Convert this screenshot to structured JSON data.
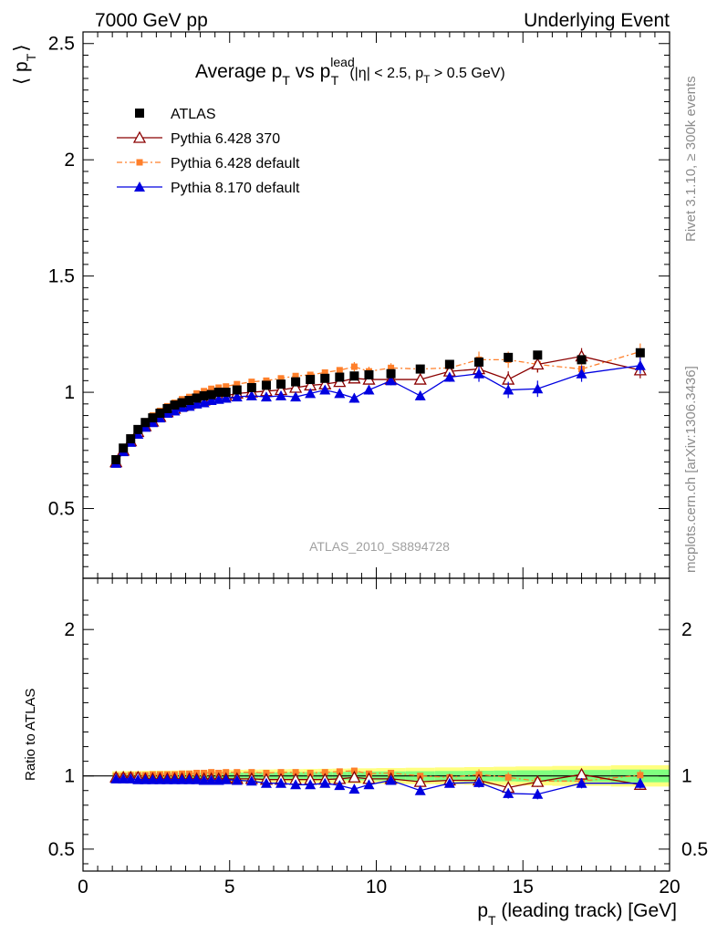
{
  "header": {
    "left": "7000 GeV pp",
    "right": "Underlying Event"
  },
  "side_labels": {
    "rivet": "Rivet 3.1.10, ≥ 300k events",
    "mcplots": "mcplots.cern.ch [arXiv:1306.3436]"
  },
  "plot_title": {
    "main": "Average p",
    "sub_t": "T",
    "vs": " vs p",
    "sup_lead": "lead",
    "sub_t2": "T",
    "cuts_a": "(|η| < 2.5, p",
    "cuts_sub": "T",
    "cuts_b": " > 0.5 GeV)"
  },
  "analysis_id": "ATLAS_2010_S8894728",
  "axis_labels": {
    "y_main": "⟨ p",
    "y_main_sub": "T",
    "y_main_close": "⟩",
    "y_ratio": "Ratio to ATLAS",
    "x": "p",
    "x_sub": "T",
    "x_rest": " (leading track) [GeV]"
  },
  "colors": {
    "atlas": "#000000",
    "py6_370": "#8b0000",
    "py6_default": "#ff7f2a",
    "py8_default": "#0000e0",
    "band_yellow": "#ffff80",
    "band_green": "#80ff80"
  },
  "chart_data": [
    {
      "type": "scatter",
      "panel": "main",
      "xlim": [
        0,
        20
      ],
      "ylim": [
        0.2,
        2.55
      ],
      "y_ticks": [
        "0.5",
        "1",
        "1.5",
        "2",
        "2.5"
      ],
      "x": [
        1.125,
        1.375,
        1.625,
        1.875,
        2.125,
        2.375,
        2.625,
        2.875,
        3.125,
        3.375,
        3.625,
        3.875,
        4.125,
        4.375,
        4.625,
        4.875,
        5.25,
        5.75,
        6.25,
        6.75,
        7.25,
        7.75,
        8.25,
        8.75,
        9.25,
        9.75,
        10.5,
        11.5,
        12.5,
        13.5,
        14.5,
        15.5,
        17.0,
        19.0
      ],
      "series": [
        {
          "name": "ATLAS",
          "values": [
            0.71,
            0.76,
            0.8,
            0.84,
            0.87,
            0.89,
            0.91,
            0.93,
            0.945,
            0.955,
            0.965,
            0.975,
            0.985,
            0.99,
            1.0,
            1.0,
            1.01,
            1.02,
            1.03,
            1.035,
            1.045,
            1.055,
            1.06,
            1.065,
            1.07,
            1.075,
            1.08,
            1.1,
            1.12,
            1.13,
            1.15,
            1.16,
            1.14,
            1.17
          ]
        },
        {
          "name": "Pythia 6.428 370",
          "values": [
            0.7,
            0.75,
            0.79,
            0.83,
            0.855,
            0.875,
            0.895,
            0.915,
            0.93,
            0.94,
            0.95,
            0.96,
            0.965,
            0.975,
            0.98,
            0.985,
            0.995,
            1.0,
            1.005,
            1.01,
            1.02,
            1.03,
            1.035,
            1.045,
            1.06,
            1.055,
            1.055,
            1.055,
            1.09,
            1.1,
            1.055,
            1.12,
            1.155,
            1.095
          ]
        },
        {
          "name": "Pythia 6.428 default",
          "values": [
            0.71,
            0.76,
            0.805,
            0.845,
            0.875,
            0.9,
            0.92,
            0.94,
            0.955,
            0.97,
            0.98,
            0.995,
            1.005,
            1.015,
            1.02,
            1.025,
            1.035,
            1.045,
            1.05,
            1.06,
            1.07,
            1.075,
            1.085,
            1.095,
            1.11,
            1.09,
            1.105,
            1.1,
            1.105,
            1.14,
            1.14,
            1.12,
            1.1,
            1.175
          ]
        },
        {
          "name": "Pythia 8.170 default",
          "values": [
            0.695,
            0.745,
            0.785,
            0.82,
            0.85,
            0.87,
            0.89,
            0.91,
            0.92,
            0.935,
            0.94,
            0.95,
            0.955,
            0.965,
            0.97,
            0.975,
            0.98,
            0.985,
            0.98,
            0.985,
            0.98,
            0.995,
            1.01,
            0.995,
            0.975,
            1.01,
            1.05,
            0.985,
            1.065,
            1.08,
            1.01,
            1.015,
            1.08,
            1.115
          ]
        }
      ]
    },
    {
      "type": "scatter",
      "panel": "ratio",
      "xlim": [
        0,
        20
      ],
      "ylim": [
        0.35,
        2.35
      ],
      "y_ticks": [
        "0.5",
        "1",
        "2"
      ],
      "x_ticks": [
        "0",
        "5",
        "10",
        "15",
        "20"
      ],
      "ylabel": "Ratio to ATLAS",
      "x": [
        1.125,
        1.375,
        1.625,
        1.875,
        2.125,
        2.375,
        2.625,
        2.875,
        3.125,
        3.375,
        3.625,
        3.875,
        4.125,
        4.375,
        4.625,
        4.875,
        5.25,
        5.75,
        6.25,
        6.75,
        7.25,
        7.75,
        8.25,
        8.75,
        9.25,
        9.75,
        10.5,
        11.5,
        12.5,
        13.5,
        14.5,
        15.5,
        17.0,
        19.0
      ],
      "series": [
        {
          "name": "Pythia 6.428 370",
          "values": [
            0.99,
            0.99,
            0.99,
            0.99,
            0.98,
            0.98,
            0.98,
            0.98,
            0.98,
            0.98,
            0.98,
            0.98,
            0.98,
            0.98,
            0.98,
            0.98,
            0.98,
            0.98,
            0.975,
            0.975,
            0.975,
            0.975,
            0.975,
            0.98,
            0.99,
            0.98,
            0.98,
            0.96,
            0.97,
            0.97,
            0.92,
            0.96,
            1.01,
            0.94
          ]
        },
        {
          "name": "Pythia 6.428 default",
          "values": [
            1.0,
            1.0,
            1.005,
            1.005,
            1.005,
            1.01,
            1.01,
            1.01,
            1.01,
            1.015,
            1.015,
            1.02,
            1.02,
            1.025,
            1.02,
            1.025,
            1.025,
            1.025,
            1.02,
            1.025,
            1.025,
            1.02,
            1.025,
            1.03,
            1.035,
            1.015,
            1.02,
            1.0,
            0.99,
            1.01,
            0.99,
            0.965,
            0.965,
            1.005
          ]
        },
        {
          "name": "Pythia 8.170 default",
          "values": [
            0.98,
            0.98,
            0.98,
            0.975,
            0.975,
            0.975,
            0.975,
            0.975,
            0.975,
            0.975,
            0.975,
            0.975,
            0.97,
            0.97,
            0.97,
            0.975,
            0.97,
            0.965,
            0.95,
            0.95,
            0.94,
            0.94,
            0.95,
            0.935,
            0.91,
            0.94,
            0.97,
            0.9,
            0.95,
            0.955,
            0.88,
            0.875,
            0.95,
            0.95
          ]
        }
      ]
    }
  ]
}
